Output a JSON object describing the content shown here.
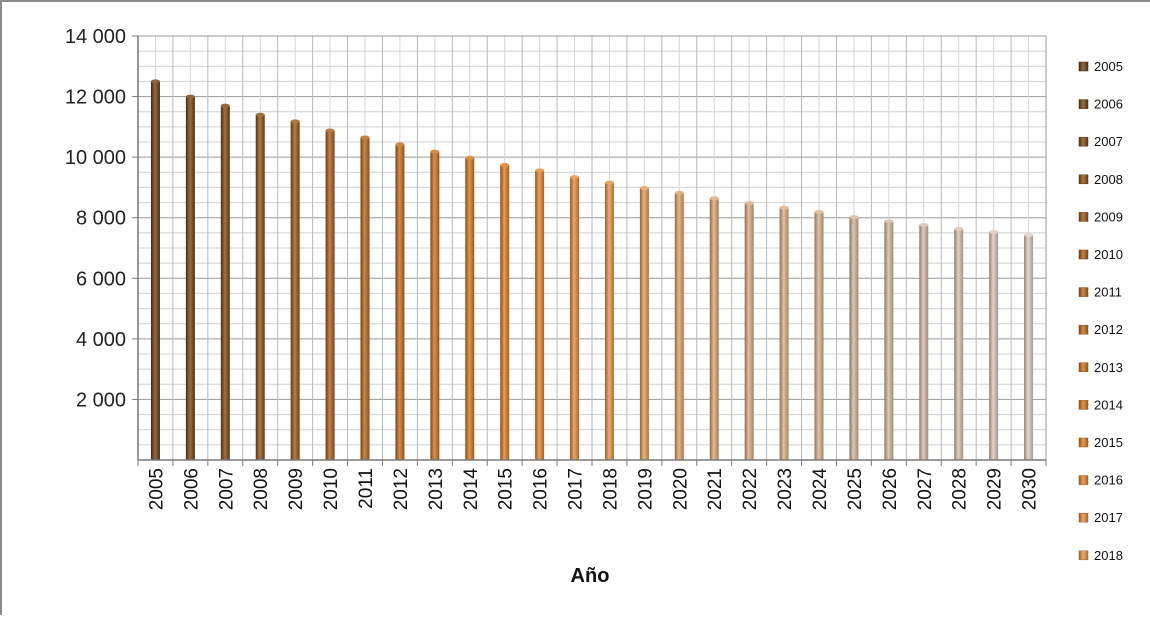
{
  "chart_data": {
    "type": "bar",
    "title": "",
    "xlabel": "Año",
    "ylabel": "",
    "ylim": [
      0,
      14000
    ],
    "yticks": [
      2000,
      4000,
      6000,
      8000,
      10000,
      12000,
      14000
    ],
    "ytick_labels": [
      "2 000",
      "4 000",
      "6 000",
      "8 000",
      "10 000",
      "12 000",
      "14 000"
    ],
    "grid": true,
    "legend_position": "right",
    "categories": [
      "2005",
      "2006",
      "2007",
      "2008",
      "2009",
      "2010",
      "2011",
      "2012",
      "2013",
      "2014",
      "2015",
      "2016",
      "2017",
      "2018",
      "2019",
      "2020",
      "2021",
      "2022",
      "2023",
      "2024",
      "2025",
      "2026",
      "2027",
      "2028",
      "2029",
      "2030"
    ],
    "values": [
      12500,
      12000,
      11700,
      11400,
      11180,
      10880,
      10650,
      10420,
      10180,
      9980,
      9740,
      9560,
      9340,
      9160,
      8980,
      8820,
      8640,
      8480,
      8330,
      8190,
      8020,
      7880,
      7760,
      7630,
      7530,
      7430
    ],
    "colors": [
      "#6b3a12",
      "#71400f",
      "#7b440f",
      "#8a4c10",
      "#9a5412",
      "#a85b13",
      "#b56216",
      "#c06817",
      "#cb6e18",
      "#d4751b",
      "#dc7b1e",
      "#e2822a",
      "#e58b36",
      "#e69342",
      "#e29b55",
      "#dfa064",
      "#dca472",
      "#d9a97c",
      "#d8ad86",
      "#d7b08e",
      "#d6b395",
      "#d6b79d",
      "#d7bba5",
      "#d9c0ad",
      "#dcc6b6",
      "#e0ccbf"
    ],
    "legend": [
      "2005",
      "2006",
      "2007",
      "2008",
      "2009",
      "2010",
      "2011",
      "2012",
      "2013",
      "2014",
      "2015",
      "2016",
      "2017",
      "2018"
    ]
  }
}
